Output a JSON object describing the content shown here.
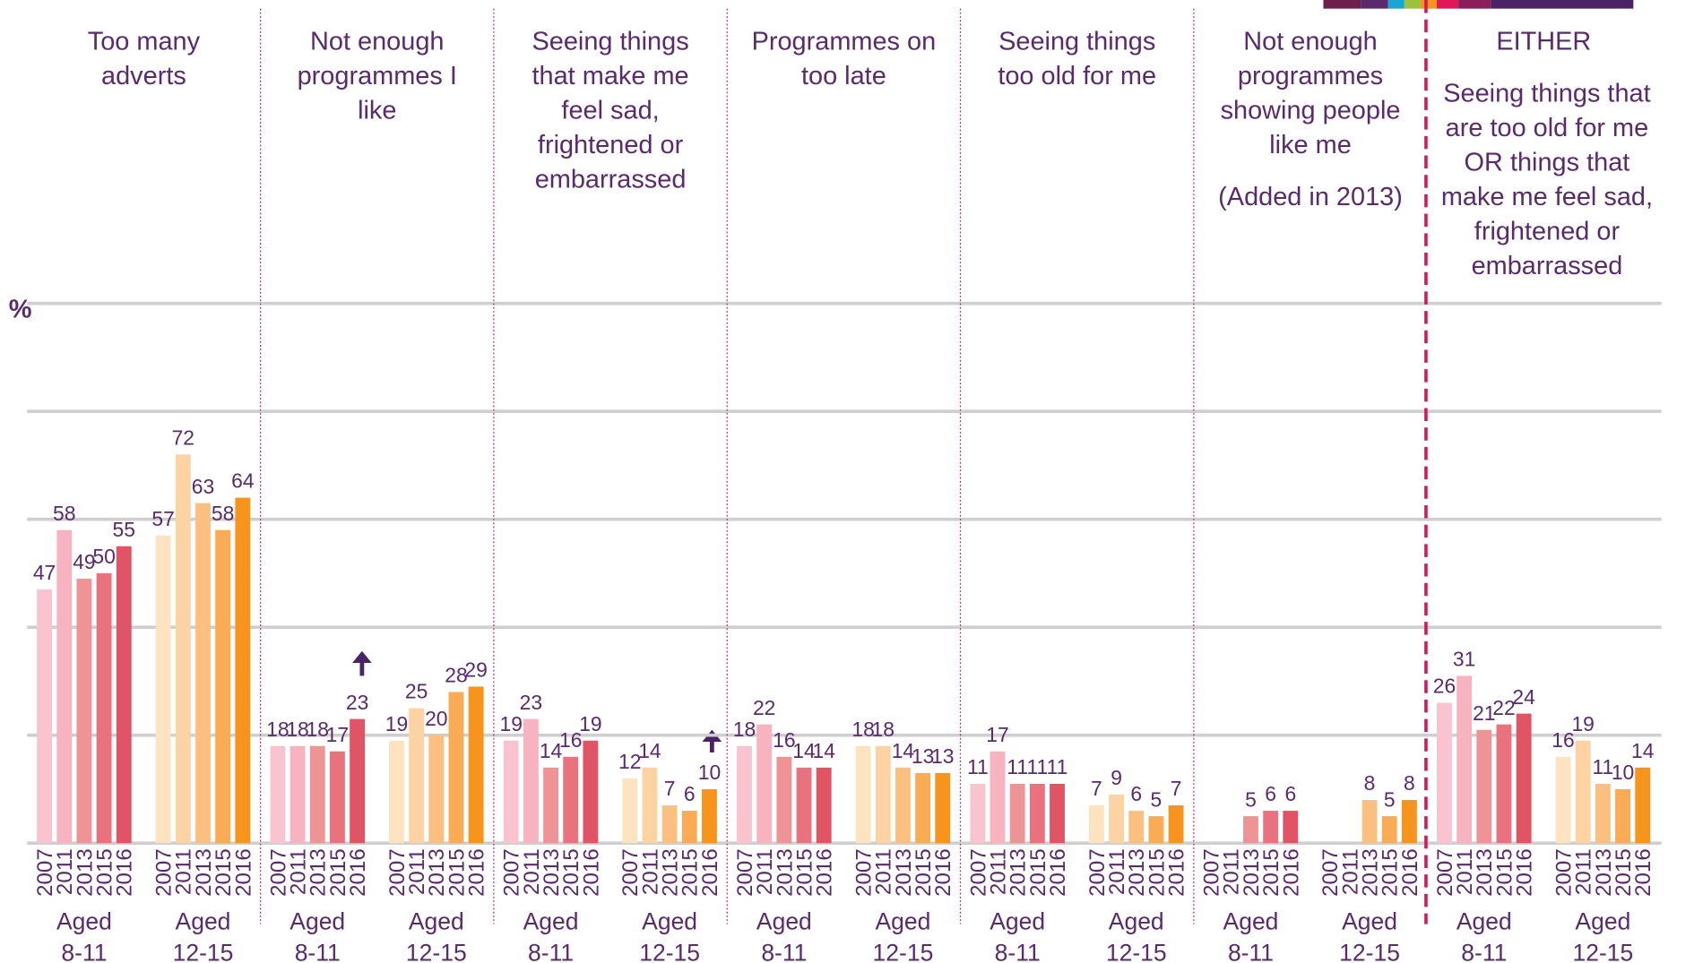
{
  "chart_data": {
    "type": "bar",
    "y_label": "%",
    "ylim": [
      0,
      100
    ],
    "yticks": [
      0,
      20,
      40,
      60,
      80,
      100
    ],
    "grid": true,
    "categories": [
      "2007",
      "2011",
      "2013",
      "2015",
      "2016"
    ],
    "age_groups": [
      {
        "label": [
          "Aged",
          "8-11"
        ],
        "colors": [
          "#f9c4cf",
          "#f7b3c0",
          "#ef9496",
          "#e8737e",
          "#e05566"
        ]
      },
      {
        "label": [
          "Aged",
          "12-15"
        ],
        "colors": [
          "#fde3c0",
          "#fdd3a3",
          "#fbc07f",
          "#f9ab55",
          "#f7941d"
        ]
      }
    ],
    "panels": [
      {
        "title": [
          "Too many",
          "adverts"
        ],
        "series": [
          {
            "values": [
              47,
              58,
              49,
              50,
              55
            ]
          },
          {
            "values": [
              57,
              72,
              63,
              58,
              64
            ]
          }
        ]
      },
      {
        "title": [
          "Not enough",
          "programmes I",
          "like"
        ],
        "series": [
          {
            "values": [
              18,
              18,
              18,
              17,
              23
            ]
          },
          {
            "values": [
              19,
              25,
              20,
              28,
              29
            ]
          }
        ]
      },
      {
        "title": [
          "Seeing things",
          "that make me",
          "feel sad,",
          "frightened or",
          "embarrassed"
        ],
        "series": [
          {
            "values": [
              19,
              23,
              14,
              16,
              19
            ]
          },
          {
            "values": [
              12,
              14,
              7,
              6,
              10
            ]
          }
        ]
      },
      {
        "title": [
          "Programmes on",
          "too late"
        ],
        "series": [
          {
            "values": [
              18,
              22,
              16,
              14,
              14
            ]
          },
          {
            "values": [
              18,
              18,
              14,
              13,
              13
            ]
          }
        ]
      },
      {
        "title": [
          "Seeing things",
          "too old for me"
        ],
        "series": [
          {
            "values": [
              11,
              17,
              11,
              11,
              11
            ]
          },
          {
            "values": [
              7,
              9,
              6,
              5,
              7
            ]
          }
        ]
      },
      {
        "title": [
          "Not enough",
          "programmes",
          "showing people",
          "like me"
        ],
        "note": "(Added in 2013)",
        "series": [
          {
            "values": [
              null,
              null,
              5,
              6,
              6
            ]
          },
          {
            "values": [
              null,
              null,
              8,
              5,
              8
            ]
          }
        ]
      },
      {
        "title": [
          "EITHER"
        ],
        "subtitle": [
          "Seeing things that",
          "are too old for me",
          "OR things that",
          "make me feel sad,",
          "frightened or",
          "embarrassed"
        ],
        "series": [
          {
            "values": [
              26,
              31,
              21,
              22,
              24
            ]
          },
          {
            "values": [
              16,
              19,
              11,
              10,
              14
            ]
          }
        ]
      }
    ]
  }
}
